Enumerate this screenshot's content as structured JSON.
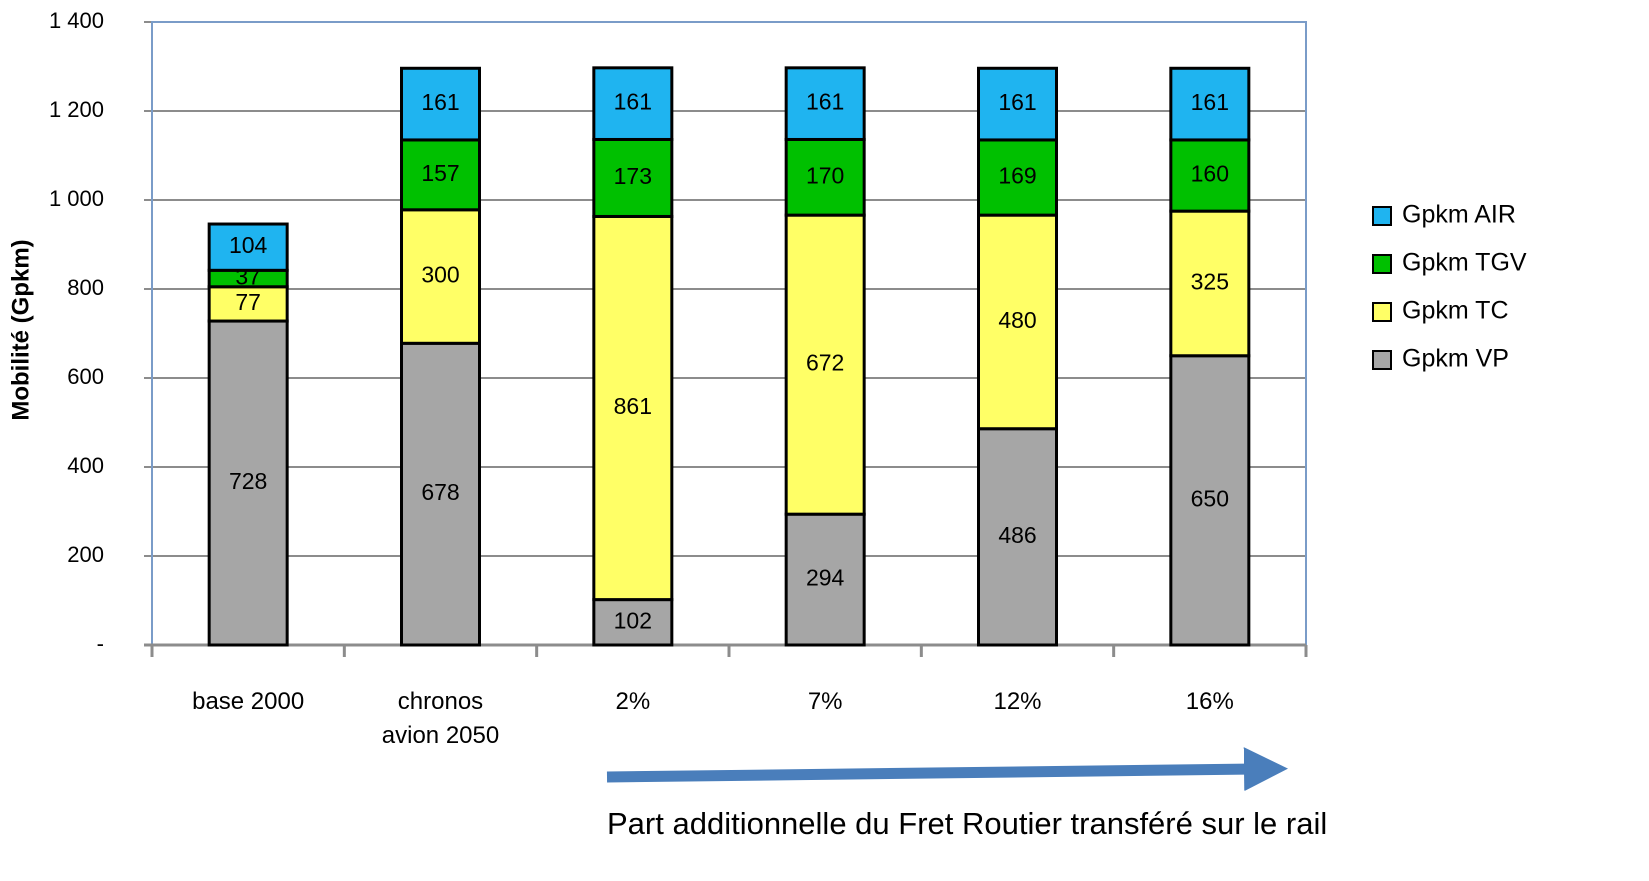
{
  "chart_data": {
    "type": "stacked_bar",
    "y_label": "Mobilité (Gpkm)",
    "categories": [
      "base 2000",
      "chronos avion 2050",
      "2%",
      "7%",
      "12%",
      "16%"
    ],
    "series": [
      {
        "name": "Gpkm VP",
        "color": "#a6a6a6",
        "values": [
          728,
          678,
          102,
          294,
          486,
          650
        ]
      },
      {
        "name": "Gpkm TC",
        "color": "#ffff66",
        "values": [
          77,
          300,
          861,
          672,
          480,
          325
        ]
      },
      {
        "name": "Gpkm TGV",
        "color": "#00c000",
        "values": [
          37,
          157,
          173,
          170,
          169,
          160
        ]
      },
      {
        "name": "Gpkm AIR",
        "color": "#1fb4f0",
        "values": [
          104,
          161,
          161,
          161,
          161,
          161
        ]
      }
    ],
    "ylim": [
      0,
      1400
    ],
    "yticks": [
      {
        "value": 0,
        "label": "-"
      },
      200,
      400,
      600,
      800,
      {
        "value": 1000,
        "label": "1 000"
      },
      {
        "value": 1200,
        "label": "1 200"
      },
      {
        "value": 1400,
        "label": "1 400"
      }
    ],
    "grid": true,
    "annotation": "Part additionnelle du Fret Routier transféré sur le rail"
  }
}
